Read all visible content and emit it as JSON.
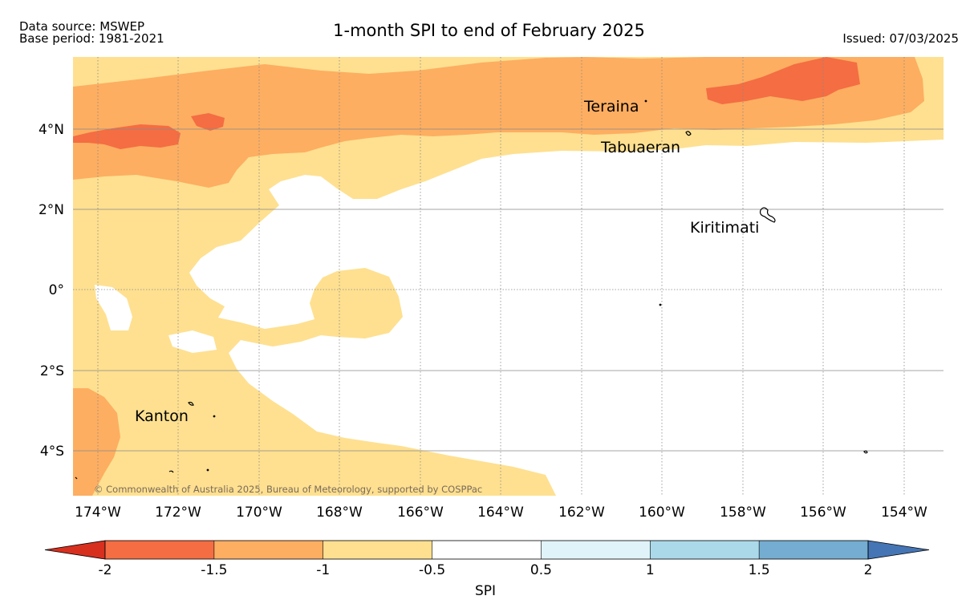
{
  "header": {
    "source": "Data source: MSWEP",
    "base_period": "Base period: 1981-2021",
    "title": "1-month SPI to end of February 2025",
    "issued": "Issued: 07/03/2025"
  },
  "map": {
    "lat_ticks": [
      "4°N",
      "2°N",
      "0°",
      "2°S",
      "4°S"
    ],
    "lon_ticks": [
      "174°W",
      "172°W",
      "170°W",
      "168°W",
      "166°W",
      "164°W",
      "162°W",
      "160°W",
      "158°W",
      "156°W",
      "154°W"
    ],
    "places": [
      "Teraina",
      "Tabuaeran",
      "Kiritimati",
      "Kanton"
    ],
    "copyright": "© Commonwealth of Australia 2025, Bureau of Meteorology, supported by COSPPac",
    "gridlines": true
  },
  "colorbar": {
    "label": "SPI",
    "ticks": [
      "-2",
      "-1.5",
      "-1",
      "-0.5",
      "0.5",
      "1",
      "1.5",
      "2"
    ],
    "colors": [
      "#d7301f",
      "#f46d43",
      "#fdae61",
      "#fee090",
      "#ffffff",
      "#e0f3f8",
      "#abd9e9",
      "#74add1",
      "#4575b4"
    ]
  }
}
